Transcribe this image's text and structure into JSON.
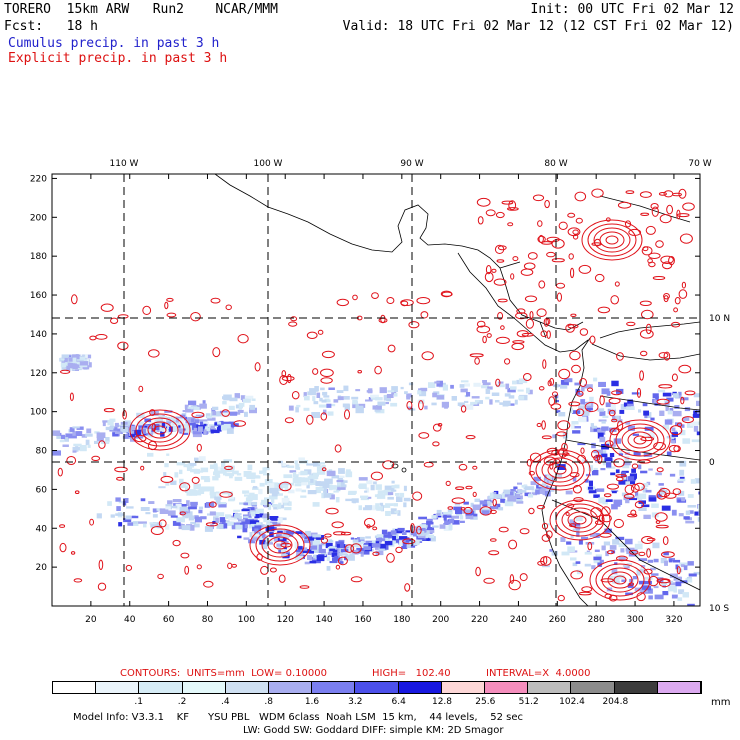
{
  "header": {
    "model": "TORERO  15km ARW   Run2    NCAR/MMM",
    "init": "Init: 00 UTC Fri 02 Mar 12",
    "fcst_label": "Fcst:   18 h",
    "valid": "Valid: 18 UTC Fri 02 Mar 12 (12 CST Fri 02 Mar 12)",
    "cumulus": "Cumulus precip. in past 3 h",
    "explicit": "Explicit precip. in past 3 h"
  },
  "axes": {
    "lon_labels": [
      "110 W",
      "100 W",
      "90 W",
      "80 W",
      "70 W"
    ],
    "lat_labels": [
      "10 N",
      "0",
      "10 S"
    ],
    "x_ticks": [
      "20",
      "40",
      "60",
      "80",
      "100",
      "120",
      "140",
      "160",
      "180",
      "200",
      "220",
      "240",
      "260",
      "280",
      "300",
      "320"
    ],
    "y_ticks": [
      "20",
      "40",
      "60",
      "80",
      "100",
      "120",
      "140",
      "160",
      "180",
      "200",
      "220"
    ]
  },
  "contours_info": {
    "units": "CONTOURS:  UNITS=mm  LOW= 0.10000",
    "high": "HIGH=   102.40",
    "interval": "INTERVAL=X  4.0000"
  },
  "colorbar": {
    "unit": "mm",
    "colors": [
      "#ffffff",
      "#eaf4fb",
      "#d6ecf6",
      "#e4f9fb",
      "#cfe0f2",
      "#a9aef0",
      "#7b7ff0",
      "#4c50ea",
      "#1818e0",
      "#fdd7d7",
      "#f58ebd",
      "#bdbdbd",
      "#8c8c8c",
      "#3c3c3c",
      "#dcaaf0"
    ],
    "labels": [
      ".1",
      ".2",
      ".4",
      ".8",
      "1.6",
      "3.2",
      "6.4",
      "12.8",
      "25.6",
      "51.2",
      "102.4",
      "204.8"
    ]
  },
  "footer": {
    "line1": "Model Info: V3.3.1    KF      YSU PBL   WDM 6class  Noah LSM  15 km,    44 levels,    52 sec",
    "line2": "LW: Godd SW: Goddard DIFF: simple KM: 2D Smagor"
  }
}
